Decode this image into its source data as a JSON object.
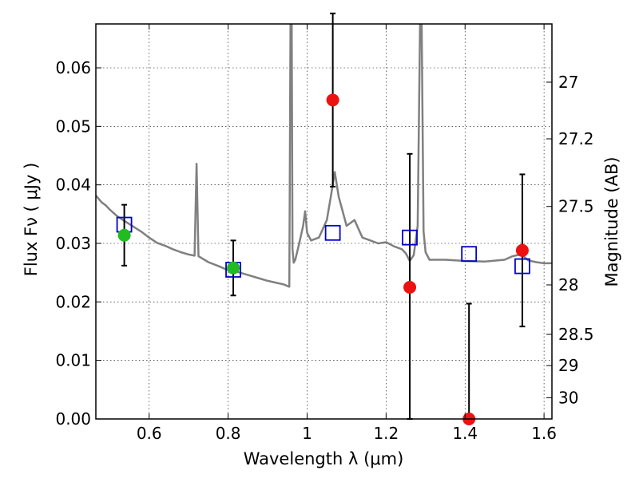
{
  "chart_data": {
    "type": "scatter",
    "xlabel": "Wavelength  λ (μm)",
    "ylabel_left": "Flux  Fν  ( μJy )",
    "ylabel_right": "Magnitude (AB)",
    "xlim": [
      0.465,
      1.62
    ],
    "ylim": [
      0.0,
      0.0675
    ],
    "x_ticks": [
      0.6,
      0.8,
      1.0,
      1.2,
      1.4,
      1.6
    ],
    "x_tick_labels": [
      "0.6",
      "0.8",
      "1",
      "1.2",
      "1.4",
      "1.6"
    ],
    "y_ticks": [
      0.0,
      0.01,
      0.02,
      0.03,
      0.04,
      0.05,
      0.06
    ],
    "y_tick_labels": [
      "0.00",
      "0.01",
      "0.02",
      "0.03",
      "0.04",
      "0.05",
      "0.06"
    ],
    "right_ticks": [
      {
        "label": "27",
        "mag": 27.0
      },
      {
        "label": "27.2",
        "mag": 27.2
      },
      {
        "label": "27.5",
        "mag": 27.5
      },
      {
        "label": "28",
        "mag": 28.0
      },
      {
        "label": "28.5",
        "mag": 28.5
      },
      {
        "label": "29",
        "mag": 29.0
      },
      {
        "label": "30",
        "mag": 30.0
      }
    ],
    "grid": true,
    "colors": {
      "model": "#808080",
      "observed_detected": "#22bb22",
      "observed_upper": "#ee1111",
      "model_photometry": "#0000cc",
      "errorbar": "#000000"
    },
    "model_spectrum": {
      "x": [
        0.465,
        0.48,
        0.49,
        0.5,
        0.51,
        0.52,
        0.55,
        0.58,
        0.6,
        0.62,
        0.64,
        0.66,
        0.68,
        0.7,
        0.715,
        0.72,
        0.725,
        0.73,
        0.75,
        0.78,
        0.8,
        0.82,
        0.85,
        0.88,
        0.9,
        0.92,
        0.94,
        0.955,
        0.958,
        0.961,
        0.963,
        0.966,
        0.97,
        0.98,
        0.99,
        0.995,
        1.0,
        1.01,
        1.03,
        1.05,
        1.06,
        1.07,
        1.08,
        1.1,
        1.12,
        1.14,
        1.16,
        1.18,
        1.2,
        1.22,
        1.24,
        1.25,
        1.26,
        1.27,
        1.28,
        1.286,
        1.29,
        1.295,
        1.3,
        1.31,
        1.35,
        1.4,
        1.45,
        1.5,
        1.52,
        1.54,
        1.55,
        1.56,
        1.58,
        1.6,
        1.62
      ],
      "y": [
        0.0382,
        0.037,
        0.0365,
        0.0358,
        0.0352,
        0.0346,
        0.0333,
        0.032,
        0.031,
        0.0301,
        0.0296,
        0.029,
        0.0285,
        0.0281,
        0.0279,
        0.0436,
        0.0278,
        0.0276,
        0.0268,
        0.026,
        0.0254,
        0.0252,
        0.0246,
        0.024,
        0.0236,
        0.0233,
        0.023,
        0.0226,
        0.0675,
        0.0675,
        0.029,
        0.0267,
        0.0272,
        0.03,
        0.033,
        0.0355,
        0.0318,
        0.0305,
        0.031,
        0.034,
        0.038,
        0.0422,
        0.038,
        0.033,
        0.034,
        0.031,
        0.0305,
        0.03,
        0.0302,
        0.0295,
        0.029,
        0.0283,
        0.027,
        0.028,
        0.033,
        0.0675,
        0.0675,
        0.032,
        0.0285,
        0.0272,
        0.0272,
        0.027,
        0.0269,
        0.0272,
        0.0278,
        0.0281,
        0.0277,
        0.0271,
        0.0268,
        0.0266,
        0.0266
      ]
    },
    "model_photometry": [
      {
        "x": 0.537,
        "y": 0.0332
      },
      {
        "x": 0.813,
        "y": 0.0255
      },
      {
        "x": 1.065,
        "y": 0.0318
      },
      {
        "x": 1.26,
        "y": 0.031
      },
      {
        "x": 1.41,
        "y": 0.0282
      },
      {
        "x": 1.545,
        "y": 0.0261
      }
    ],
    "observed": [
      {
        "x": 0.537,
        "y": 0.0314,
        "yerr_low": 0.0052,
        "yerr_high": 0.0052,
        "kind": "detected"
      },
      {
        "x": 0.813,
        "y": 0.0258,
        "yerr_low": 0.0047,
        "yerr_high": 0.0047,
        "kind": "detected"
      },
      {
        "x": 1.065,
        "y": 0.0545,
        "yerr_low": 0.0148,
        "yerr_high": 0.0148,
        "kind": "upper"
      },
      {
        "x": 1.26,
        "y": 0.0225,
        "yerr_low": 0.0225,
        "yerr_high": 0.0228,
        "kind": "upper"
      },
      {
        "x": 1.41,
        "y": 0.0,
        "yerr_low": 0.0,
        "yerr_high": 0.0197,
        "kind": "upper"
      },
      {
        "x": 1.545,
        "y": 0.0288,
        "yerr_low": 0.013,
        "yerr_high": 0.013,
        "kind": "upper"
      }
    ]
  }
}
